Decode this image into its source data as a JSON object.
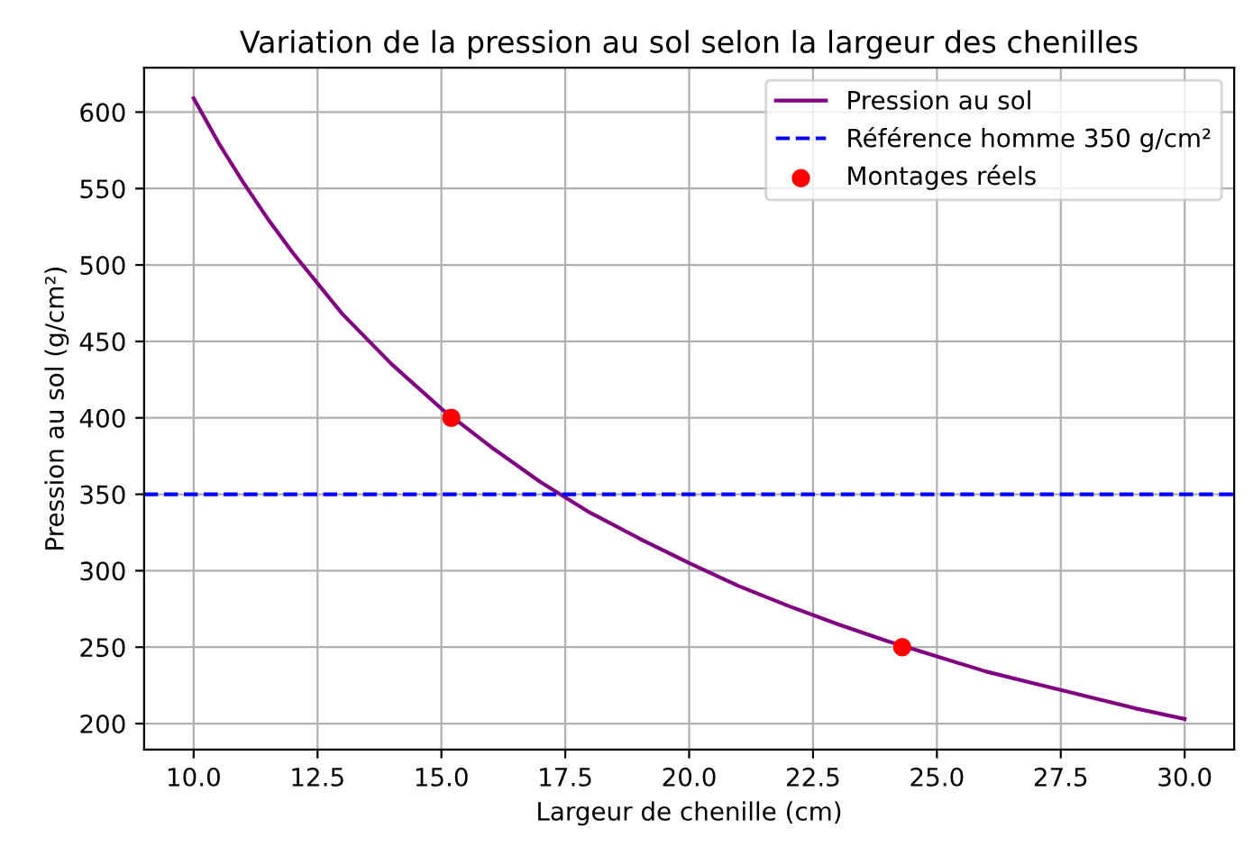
{
  "chart_data": {
    "type": "line",
    "title": "Variation de la pression au sol selon la largeur des chenilles",
    "xlabel": "Largeur de chenille (cm)",
    "ylabel": "Pression au sol (g/cm²)",
    "series": [
      {
        "name": "Pression au sol",
        "color": "#800080",
        "line_style": "solid",
        "marker": "none",
        "x": [
          10,
          10.5,
          11,
          11.5,
          12,
          13,
          14,
          15,
          16,
          17,
          18,
          19,
          20,
          21,
          22,
          23,
          24,
          25,
          26,
          27,
          28,
          29,
          30
        ],
        "values": [
          609,
          580,
          554,
          530,
          508,
          468,
          435,
          406,
          381,
          358,
          338,
          321,
          305,
          290,
          277,
          265,
          254,
          244,
          234,
          226,
          218,
          210,
          203
        ]
      },
      {
        "name": "Montages réels",
        "type": "scatter",
        "color": "#ff0000",
        "marker": "circle",
        "x": [
          15.2,
          24.3
        ],
        "values": [
          400,
          250
        ]
      }
    ],
    "ref_lines": [
      {
        "axis": "y",
        "value": 350,
        "label": "Référence homme 350 g/cm²",
        "color": "#0000ff",
        "line_style": "dashed"
      }
    ],
    "xlim": [
      9,
      31
    ],
    "ylim": [
      183,
      629
    ],
    "xticks": [
      {
        "value": 10,
        "label": "10.0"
      },
      12.5,
      {
        "value": 15,
        "label": "15.0"
      },
      17.5,
      {
        "value": 20,
        "label": "20.0"
      },
      22.5,
      {
        "value": 25,
        "label": "25.0"
      },
      27.5,
      {
        "value": 30,
        "label": "30.0"
      }
    ],
    "yticks": [
      200,
      250,
      300,
      350,
      400,
      450,
      500,
      550,
      600
    ],
    "grid": true,
    "legend": "top right"
  }
}
